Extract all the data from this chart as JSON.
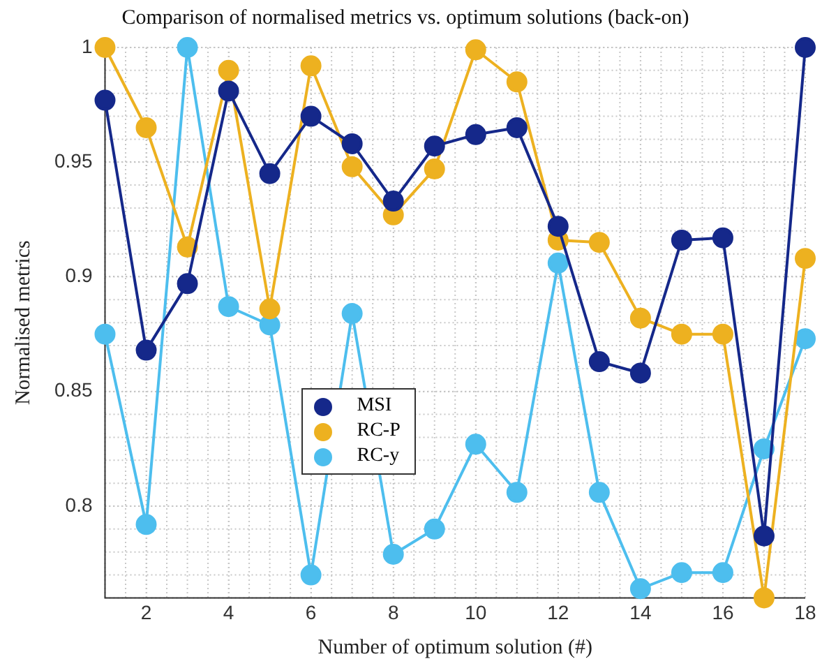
{
  "chart_data": {
    "type": "line",
    "title": "Comparison of normalised metrics vs. optimum solutions (back-on)",
    "xlabel": "Number of optimum solution (#)",
    "ylabel": "Normalised metrics",
    "x": [
      1,
      2,
      3,
      4,
      5,
      6,
      7,
      8,
      9,
      10,
      11,
      12,
      13,
      14,
      15,
      16,
      17,
      18
    ],
    "series": [
      {
        "name": "MSI",
        "color": "#15288a",
        "values": [
          0.977,
          0.868,
          0.897,
          0.981,
          0.945,
          0.97,
          0.958,
          0.933,
          0.957,
          0.962,
          0.965,
          0.922,
          0.863,
          0.858,
          0.916,
          0.917,
          0.787,
          1.0
        ]
      },
      {
        "name": "RC-P",
        "color": "#edb120",
        "values": [
          1.0,
          0.965,
          0.913,
          0.99,
          0.886,
          0.992,
          0.948,
          0.927,
          0.947,
          0.999,
          0.985,
          0.916,
          0.915,
          0.882,
          0.875,
          0.875,
          0.76,
          0.908
        ]
      },
      {
        "name": "RC-y",
        "color": "#4dbeee",
        "values": [
          0.875,
          0.792,
          1.0,
          0.887,
          0.879,
          0.77,
          0.884,
          0.779,
          0.79,
          0.827,
          0.806,
          0.906,
          0.806,
          0.764,
          0.771,
          0.771,
          0.825,
          0.873
        ]
      }
    ],
    "xlim": [
      1,
      18
    ],
    "xticks": [
      2,
      4,
      6,
      8,
      10,
      12,
      14,
      16,
      18
    ],
    "ylim": [
      0.76,
      1
    ],
    "yticks": [
      0.8,
      0.85,
      0.9,
      0.95,
      1
    ],
    "grid": true,
    "legend": "center left",
    "marker": "circle",
    "line_style": "solid"
  }
}
